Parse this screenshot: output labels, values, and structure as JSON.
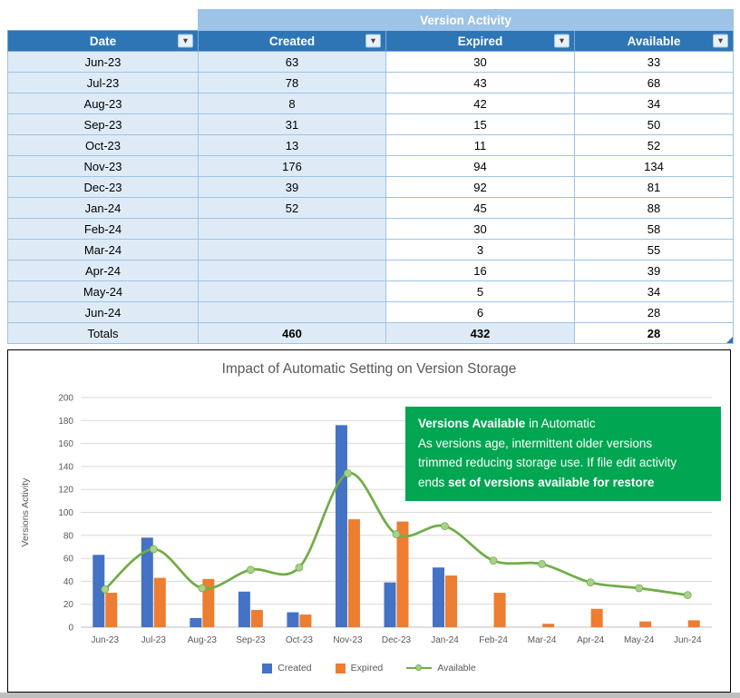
{
  "table": {
    "banner": "Version Activity",
    "columns": [
      "Date",
      "Created",
      "Expired",
      "Available"
    ],
    "rows": [
      {
        "date": "Jun-23",
        "created": "63",
        "expired": "30",
        "available": "33"
      },
      {
        "date": "Jul-23",
        "created": "78",
        "expired": "43",
        "available": "68"
      },
      {
        "date": "Aug-23",
        "created": "8",
        "expired": "42",
        "available": "34"
      },
      {
        "date": "Sep-23",
        "created": "31",
        "expired": "15",
        "available": "50"
      },
      {
        "date": "Oct-23",
        "created": "13",
        "expired": "11",
        "available": "52"
      },
      {
        "date": "Nov-23",
        "created": "176",
        "expired": "94",
        "available": "134"
      },
      {
        "date": "Dec-23",
        "created": "39",
        "expired": "92",
        "available": "81"
      },
      {
        "date": "Jan-24",
        "created": "52",
        "expired": "45",
        "available": "88"
      },
      {
        "date": "Feb-24",
        "created": "",
        "expired": "30",
        "available": "58"
      },
      {
        "date": "Mar-24",
        "created": "",
        "expired": "3",
        "available": "55"
      },
      {
        "date": "Apr-24",
        "created": "",
        "expired": "16",
        "available": "39"
      },
      {
        "date": "May-24",
        "created": "",
        "expired": "5",
        "available": "34"
      },
      {
        "date": "Jun-24",
        "created": "",
        "expired": "6",
        "available": "28"
      }
    ],
    "totals": {
      "label": "Totals",
      "created": "460",
      "expired": "432",
      "available": "28"
    }
  },
  "chart_data": {
    "type": "bar",
    "title": "Impact of Automatic Setting on Version Storage",
    "xlabel": "",
    "ylabel": "Versions Activity",
    "ylim": [
      0,
      200
    ],
    "ytick_step": 20,
    "grid": true,
    "legend_position": "bottom",
    "categories": [
      "Jun-23",
      "Jul-23",
      "Aug-23",
      "Sep-23",
      "Oct-23",
      "Nov-23",
      "Dec-23",
      "Jan-24",
      "Feb-24",
      "Mar-24",
      "Apr-24",
      "May-24",
      "Jun-24"
    ],
    "series": [
      {
        "name": "Created",
        "type": "bar",
        "color": "#4472C4",
        "values": [
          63,
          78,
          8,
          31,
          13,
          176,
          39,
          52,
          null,
          null,
          null,
          null,
          null
        ]
      },
      {
        "name": "Expired",
        "type": "bar",
        "color": "#ED7D31",
        "values": [
          30,
          43,
          42,
          15,
          11,
          94,
          92,
          45,
          30,
          3,
          16,
          5,
          6
        ]
      },
      {
        "name": "Available",
        "type": "line",
        "color": "#70AD47",
        "marker_color": "#A9D08E",
        "values": [
          33,
          68,
          34,
          50,
          52,
          134,
          81,
          88,
          58,
          55,
          39,
          34,
          28
        ]
      }
    ],
    "annotation": {
      "bg": "#00A651",
      "lines": [
        [
          {
            "t": "Versions Available",
            "b": true
          },
          {
            "t": " in Automatic",
            "b": false
          }
        ],
        [
          {
            "t": "As versions age, intermittent  older versions",
            "b": false
          }
        ],
        [
          {
            "t": "trimmed reducing storage use. If file edit activity",
            "b": false
          }
        ],
        [
          {
            "t": "ends ",
            "b": false
          },
          {
            "t": "set of versions available for restore",
            "b": true
          }
        ]
      ]
    }
  },
  "colors": {
    "banner_bg": "#9DC3E6",
    "header_bg": "#2E75B6",
    "row_tint": "#DEEBF7",
    "grid_line": "#D9D9D9",
    "axis_line": "#BFBFBF",
    "chart_text": "#595959"
  }
}
